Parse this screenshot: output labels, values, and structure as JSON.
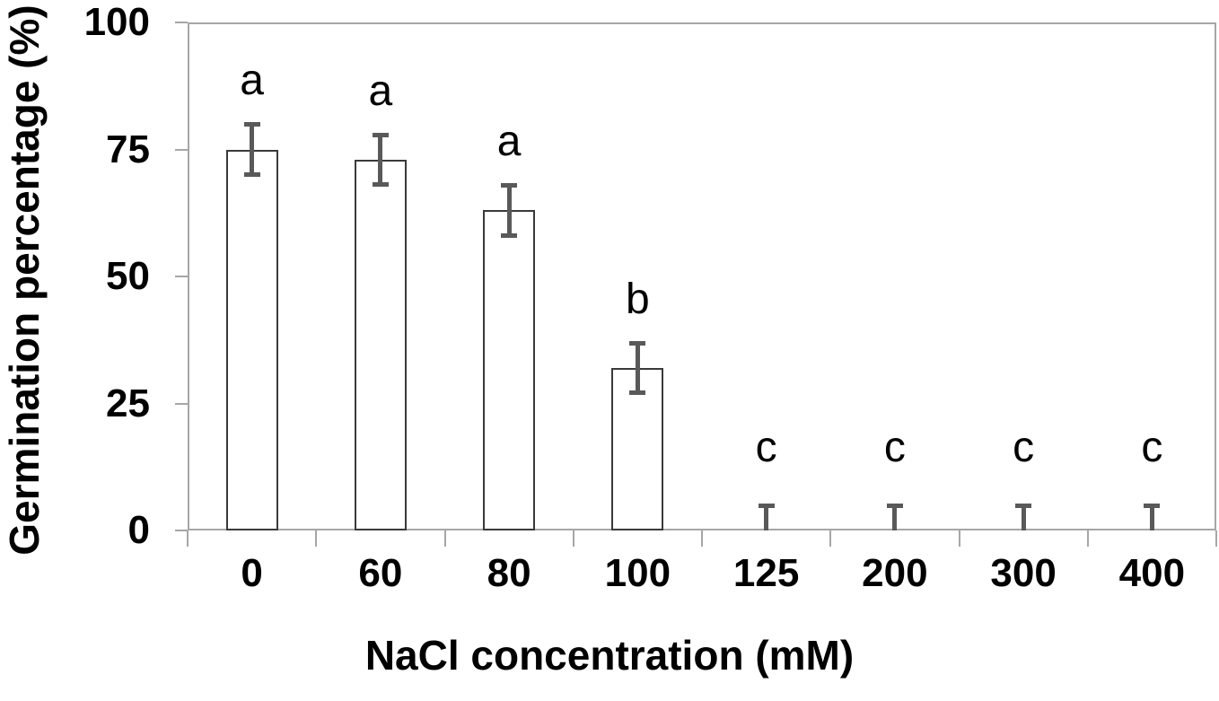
{
  "figure": {
    "background": "#ffffff"
  },
  "chart_data": {
    "type": "bar",
    "title": "",
    "xlabel": "NaCl concentration (mM)",
    "ylabel": "Germination percentage (%)",
    "categories": [
      "0",
      "60",
      "80",
      "100",
      "125",
      "200",
      "300",
      "400"
    ],
    "values": [
      75,
      73,
      63,
      32,
      0,
      0,
      0,
      0
    ],
    "error_bars": [
      5,
      5,
      5,
      5,
      5,
      5,
      5,
      5
    ],
    "significance_letters": [
      "a",
      "a",
      "a",
      "b",
      "c",
      "c",
      "c",
      "c"
    ],
    "y_ticks": [
      0,
      25,
      50,
      75,
      100
    ],
    "ylim": [
      0,
      100
    ],
    "grid": false,
    "legend_position": "none",
    "colors": {
      "bar_fill": "#ffffff",
      "bar_border": "#3a3a3a",
      "error_bar": "#595959",
      "axis": "#a6a6a6",
      "text": "#000000"
    }
  }
}
